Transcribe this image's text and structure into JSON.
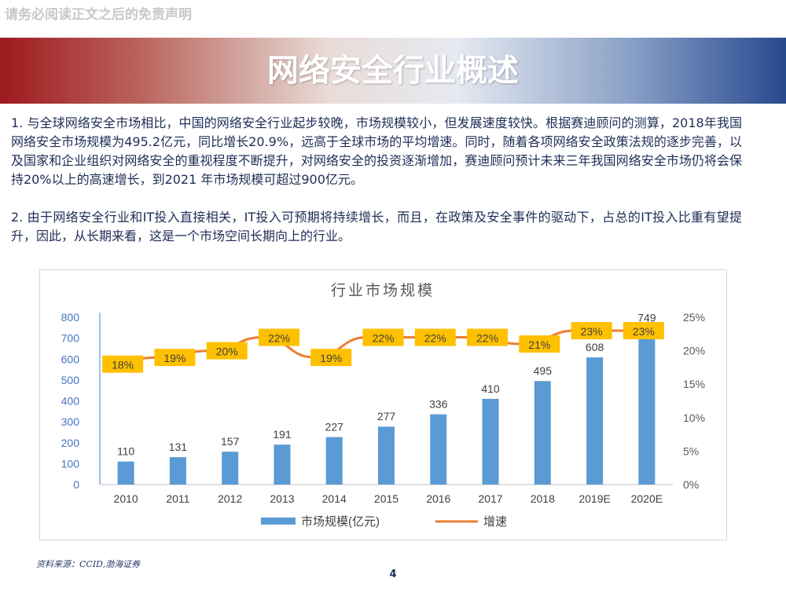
{
  "disclaimer": "请务必阅读正文之后的免责声明",
  "title": "网络安全行业概述",
  "paragraphs": {
    "p1": "1. 与全球网络安全市场相比，中国的网络安全行业起步较晚，市场规模较小，但发展速度较快。根据赛迪顾问的测算，2018年我国网络安全市场规模为495.2亿元，同比增长20.9%，远高于全球市场的平均增速。同时，随着各项网络安全政策法规的逐步完善，以及国家和企业组织对网络安全的重视程度不断提升，对网络安全的投资逐渐增加，赛迪顾问预计未来三年我国网络安全市场仍将会保持20%以上的高速增长，到2021 年市场规模可超过900亿元。",
    "p2": "2. 由于网络安全行业和IT投入直接相关，IT投入可预期将持续增长，而且，在政策及安全事件的驱动下，占总的IT投入比重有望提升，因此，从长期来看，这是一个市场空间长期向上的行业。"
  },
  "chart_data": {
    "type": "bar",
    "title": "行业市场规模",
    "categories": [
      "2010",
      "2011",
      "2012",
      "2013",
      "2014",
      "2015",
      "2016",
      "2017",
      "2018",
      "2019E",
      "2020E"
    ],
    "series": [
      {
        "name": "市场规模(亿元)",
        "type": "bar",
        "axis": "left",
        "color": "#5b9bd5",
        "values": [
          110,
          131,
          157,
          191,
          227,
          277,
          336,
          410,
          495,
          608,
          749
        ],
        "labels": [
          "110",
          "131",
          "157",
          "191",
          "227",
          "277",
          "336",
          "410",
          "495",
          "608",
          "749"
        ]
      },
      {
        "name": "增速",
        "type": "line",
        "axis": "right",
        "color": "#ed7d31",
        "values": [
          18,
          19,
          20,
          22,
          19,
          22,
          22,
          22,
          21,
          23,
          23
        ],
        "labels": [
          "18%",
          "19%",
          "20%",
          "22%",
          "19%",
          "22%",
          "22%",
          "22%",
          "21%",
          "23%",
          "23%"
        ]
      }
    ],
    "y_left": {
      "min": 0,
      "max": 800,
      "ticks": [
        "0",
        "100",
        "200",
        "300",
        "400",
        "500",
        "600",
        "700",
        "800"
      ]
    },
    "y_right": {
      "min": 0,
      "max": 25,
      "ticks": [
        "0%",
        "5%",
        "10%",
        "15%",
        "20%",
        "25%"
      ]
    },
    "legend_position": "bottom",
    "grid": false,
    "label_badge_color": "#ffc000"
  },
  "source": "资料来源：CCID,渤海证券",
  "page_number": "4"
}
